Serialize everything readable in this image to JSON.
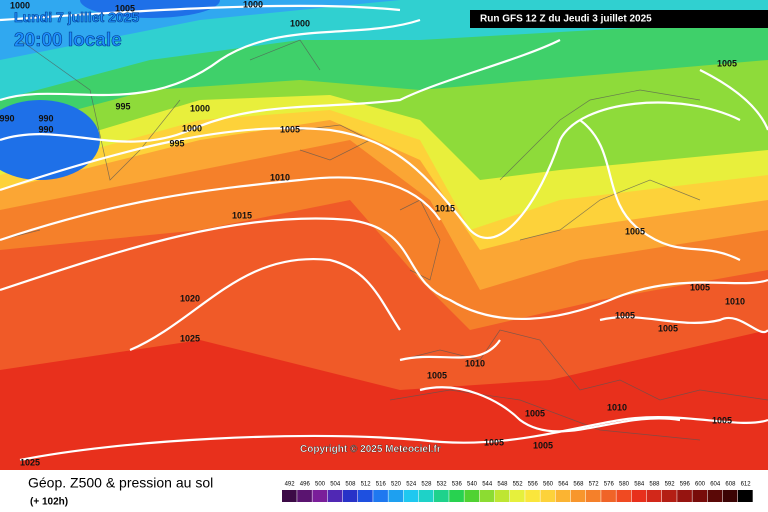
{
  "header": {
    "date": "Lundi 7 juillet 2025",
    "time": "20:00 locale"
  },
  "run_info": "Run GFS 12 Z du Jeudi 3 juillet 2025",
  "copyright": "Copyright © 2025 Meteociel.fr",
  "legend": {
    "title": "Géop. Z500 & pression au sol",
    "subtitle": "(+ 102h)",
    "values": [
      492,
      496,
      500,
      504,
      508,
      512,
      516,
      520,
      524,
      528,
      532,
      536,
      540,
      544,
      548,
      552,
      556,
      560,
      564,
      568,
      572,
      576,
      580,
      584,
      588,
      592,
      596,
      600,
      604,
      608,
      612
    ],
    "colors": [
      "#3c0a46",
      "#5a1470",
      "#7a1e9a",
      "#5028b4",
      "#2832c8",
      "#1e50e0",
      "#1e78f0",
      "#1ea0f0",
      "#1ec8f0",
      "#1ed2c8",
      "#1ed28c",
      "#28d250",
      "#50d232",
      "#8cdc32",
      "#bee632",
      "#e6f03c",
      "#fae63c",
      "#fdd23a",
      "#fbb432",
      "#f8962c",
      "#f5802a",
      "#f06428",
      "#f04a22",
      "#e8301c",
      "#d2281a",
      "#b41e14",
      "#961410",
      "#780c0a",
      "#5a0806",
      "#3c0404",
      "#000000"
    ]
  },
  "isobar_labels": [
    "1000",
    "1005",
    "1000",
    "1000",
    "1005",
    "995",
    "1000",
    "990",
    "990",
    "990",
    "1000",
    "995",
    "1005",
    "1010",
    "1015",
    "1015",
    "1005",
    "1020",
    "1005",
    "1010",
    "1005",
    "1005",
    "1025",
    "1010",
    "1005",
    "1010",
    "1005",
    "1005",
    "1005",
    "1005",
    "1025"
  ]
}
